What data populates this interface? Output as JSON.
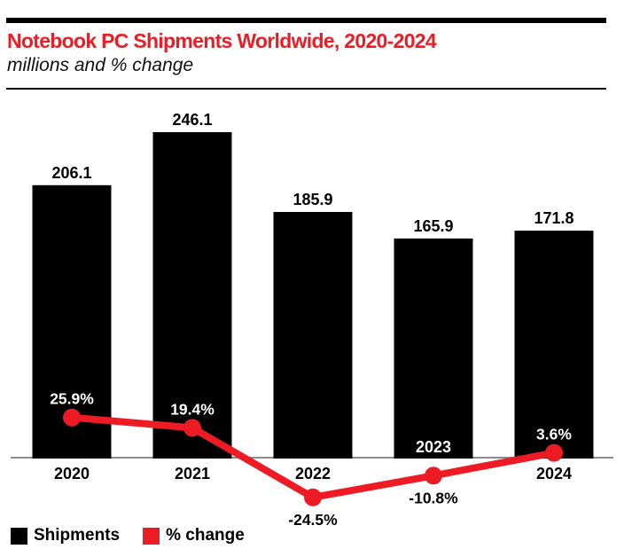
{
  "colors": {
    "accent_red": "#ed1c24",
    "bar_black": "#000000",
    "baseline_gray": "#8c8c8c",
    "label_white": "#ffffff"
  },
  "header": {
    "title": "Notebook PC Shipments Worldwide, 2020-2024",
    "subtitle": "millions and % change"
  },
  "legend": {
    "items": [
      {
        "label": "Shipments",
        "color": "#000000"
      },
      {
        "label": "% change",
        "color": "#ed1c24"
      }
    ]
  },
  "chart_data": {
    "type": "bar",
    "subtype": "combo-bar-line",
    "title": "Notebook PC Shipments Worldwide, 2020-2024",
    "subtitle": "millions and % change",
    "categories": [
      "2020",
      "2021",
      "2022",
      "2023",
      "2024"
    ],
    "series": [
      {
        "name": "Shipments",
        "chart": "bar",
        "unit": "millions",
        "color": "#000000",
        "values": [
          206.1,
          246.1,
          185.9,
          165.9,
          171.8
        ],
        "labels": [
          "206.1",
          "246.1",
          "185.9",
          "165.9",
          "171.8"
        ]
      },
      {
        "name": "% change",
        "chart": "line",
        "unit": "percent",
        "color": "#ed1c24",
        "values": [
          25.9,
          19.4,
          -24.5,
          -10.8,
          3.6
        ],
        "labels": [
          "25.9%",
          "19.4%",
          "-24.5%",
          "-10.8%",
          "3.6%"
        ]
      }
    ],
    "xlabel": "",
    "ylabel": "",
    "bar_axis_range": [
      0,
      246.1
    ],
    "pct_axis_zero_at_baseline": true,
    "gridlines": false,
    "legend_position": "bottom-left",
    "year_labels_inside_bar": [
      "2023"
    ],
    "pct_label_placement": "white above marker when positive, black below marker when negative"
  }
}
